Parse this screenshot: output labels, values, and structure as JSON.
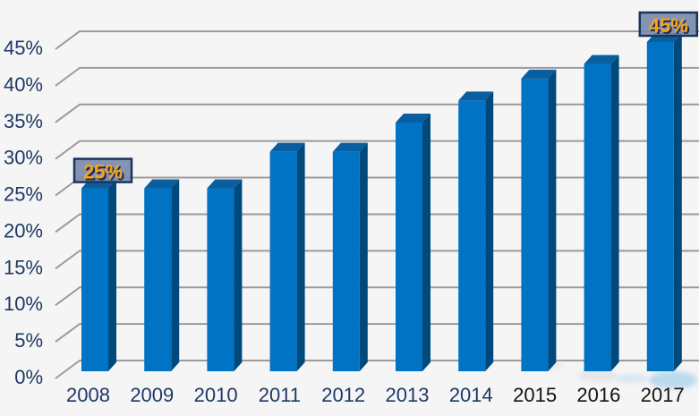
{
  "chart_data": {
    "type": "bar",
    "style": "3d-column",
    "title": "",
    "xlabel": "",
    "ylabel": "",
    "categories": [
      "2008",
      "2009",
      "2010",
      "2011",
      "2012",
      "2013",
      "2014",
      "2015",
      "2016",
      "2017"
    ],
    "values": [
      25,
      25,
      25,
      30,
      30,
      34,
      37,
      40,
      42,
      45
    ],
    "unit": "%",
    "ylim": [
      0,
      45
    ],
    "y_tick_step": 5,
    "y_ticks": [
      "0%",
      "5%",
      "10%",
      "15%",
      "20%",
      "25%",
      "30%",
      "35%",
      "40%",
      "45%"
    ],
    "grid": true,
    "legend": false,
    "data_labels": [
      {
        "category": "2008",
        "text": "25%"
      },
      {
        "category": "2017",
        "text": "45%"
      }
    ]
  },
  "colors": {
    "background": "#F5F5F6",
    "bar_front": "#0173C5",
    "bar_top": "#085E9E",
    "bar_side": "#00497B",
    "gridline": "#9B9B9B",
    "y_tick_text": "#1F3864",
    "x_tick_colors": [
      "#1F3864",
      "#1F3864",
      "#1F3864",
      "#1F3864",
      "#1F3864",
      "#1F3864",
      "#1F3864",
      "#131313",
      "#131313",
      "#131313"
    ],
    "callout_fill": "#7A8AAD",
    "callout_border": "#17365D",
    "callout_text": "#F9A11B",
    "callout_text_shadow": "#1A2D52"
  }
}
